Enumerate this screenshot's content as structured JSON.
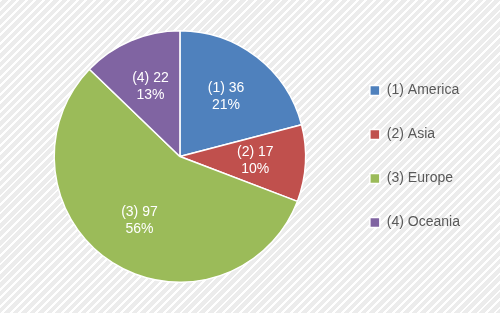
{
  "chart_data": {
    "type": "pie",
    "categories": [
      "(1) America",
      "(2) Asia",
      "(3) Europe",
      "(4) Oceania"
    ],
    "values": [
      36,
      17,
      97,
      22
    ],
    "value_labels": [
      "(1) 36",
      "(2) 17",
      "(3) 97",
      "(4) 22"
    ],
    "percentage_labels": [
      "21%",
      "10%",
      "56%",
      "13%"
    ],
    "colors": [
      "#4f81bd",
      "#c0504d",
      "#9bbb59",
      "#8064a2"
    ],
    "legend": "right",
    "data_labels": true
  }
}
